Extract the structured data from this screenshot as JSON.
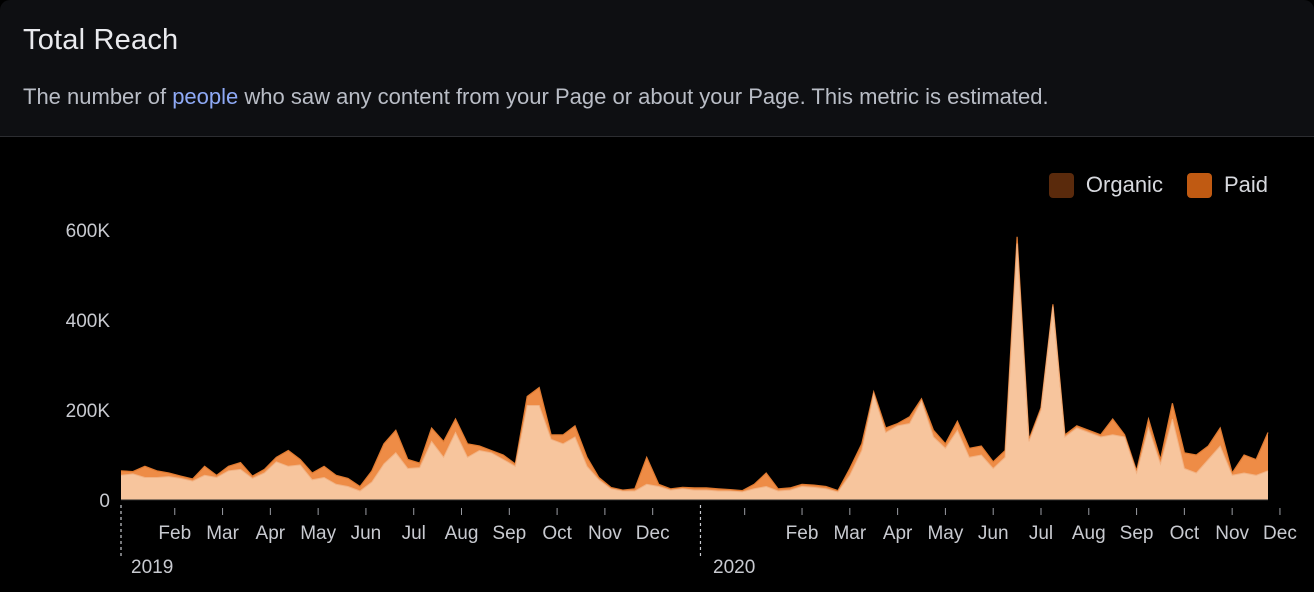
{
  "header": {
    "title": "Total Reach",
    "subtitle_pre": "The number of ",
    "subtitle_link": "people",
    "subtitle_post": " who saw any content from your Page or about your Page. This metric is estimated."
  },
  "colors": {
    "organic": "#5a2a0c",
    "paid": "#c05a12",
    "organic_fill": "#f7c59d",
    "paid_fill": "#ee8c46",
    "background": "#000000",
    "header_bg": "#0e0f12",
    "link": "#8ea9f5"
  },
  "chart_data": {
    "type": "area",
    "stacked": true,
    "title": "Total Reach",
    "legend": {
      "position": "top-right",
      "entries": [
        "Organic",
        "Paid"
      ]
    },
    "ylim": [
      0,
      600000
    ],
    "y_ticks": [
      0,
      200000,
      400000,
      600000
    ],
    "y_tick_labels": [
      "0",
      "200K",
      "400K",
      "600K"
    ],
    "x_ticks": [
      {
        "week": 4.5,
        "label": "Feb"
      },
      {
        "week": 8.5,
        "label": "Mar"
      },
      {
        "week": 12.5,
        "label": "Apr"
      },
      {
        "week": 16.5,
        "label": "May"
      },
      {
        "week": 20.5,
        "label": "Jun"
      },
      {
        "week": 24.5,
        "label": "Jul"
      },
      {
        "week": 28.5,
        "label": "Aug"
      },
      {
        "week": 32.5,
        "label": "Sep"
      },
      {
        "week": 36.5,
        "label": "Oct"
      },
      {
        "week": 40.5,
        "label": "Nov"
      },
      {
        "week": 44.5,
        "label": "Dec"
      },
      {
        "week": 52.2,
        "label": ""
      },
      {
        "week": 57,
        "label": "Feb"
      },
      {
        "week": 61,
        "label": "Mar"
      },
      {
        "week": 65,
        "label": "Apr"
      },
      {
        "week": 69,
        "label": "May"
      },
      {
        "week": 73,
        "label": "Jun"
      },
      {
        "week": 77,
        "label": "Jul"
      },
      {
        "week": 81,
        "label": "Aug"
      },
      {
        "week": 85,
        "label": "Sep"
      },
      {
        "week": 89,
        "label": "Oct"
      },
      {
        "week": 93,
        "label": "Nov"
      },
      {
        "week": 97,
        "label": "Dec"
      }
    ],
    "year_labels": [
      {
        "week": 0,
        "label": "2019"
      },
      {
        "week": 48.2,
        "label": "2020"
      }
    ],
    "series": [
      {
        "name": "Organic",
        "values": [
          55000,
          58000,
          50000,
          50000,
          52000,
          48000,
          42000,
          55000,
          50000,
          65000,
          68000,
          48000,
          60000,
          85000,
          75000,
          78000,
          45000,
          50000,
          35000,
          30000,
          20000,
          40000,
          80000,
          105000,
          70000,
          72000,
          130000,
          95000,
          150000,
          95000,
          110000,
          105000,
          90000,
          75000,
          210000,
          210000,
          135000,
          125000,
          140000,
          75000,
          45000,
          25000,
          20000,
          20000,
          35000,
          30000,
          22000,
          25000,
          22000,
          22000,
          20000,
          20000,
          18000,
          25000,
          30000,
          20000,
          22000,
          30000,
          28000,
          25000,
          18000,
          55000,
          110000,
          235000,
          150000,
          165000,
          170000,
          220000,
          140000,
          115000,
          155000,
          95000,
          100000,
          70000,
          95000,
          570000,
          130000,
          200000,
          430000,
          140000,
          160000,
          150000,
          140000,
          145000,
          140000,
          60000,
          160000,
          80000,
          180000,
          70000,
          60000,
          90000,
          120000,
          55000,
          60000,
          55000,
          65000
        ],
        "paid": false
      },
      {
        "name": "Paid",
        "values": [
          10000,
          5000,
          25000,
          15000,
          8000,
          5000,
          5000,
          20000,
          5000,
          10000,
          15000,
          5000,
          8000,
          10000,
          35000,
          12000,
          15000,
          25000,
          20000,
          18000,
          10000,
          25000,
          45000,
          50000,
          20000,
          10000,
          30000,
          35000,
          30000,
          30000,
          10000,
          5000,
          10000,
          5000,
          20000,
          40000,
          10000,
          20000,
          25000,
          20000,
          5000,
          3000,
          2000,
          5000,
          60000,
          5000,
          3000,
          3000,
          5000,
          5000,
          5000,
          3000,
          3000,
          10000,
          30000,
          5000,
          5000,
          5000,
          5000,
          5000,
          3000,
          15000,
          15000,
          5000,
          10000,
          5000,
          15000,
          5000,
          15000,
          10000,
          20000,
          20000,
          20000,
          15000,
          15000,
          15000,
          5000,
          5000,
          5000,
          5000,
          5000,
          5000,
          5000,
          35000,
          5000,
          5000,
          20000,
          10000,
          35000,
          35000,
          40000,
          30000,
          40000,
          5000,
          40000,
          35000,
          85000
        ]
      }
    ]
  }
}
